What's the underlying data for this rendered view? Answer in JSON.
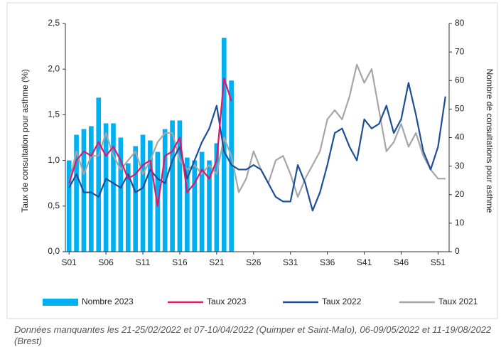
{
  "chart_data": {
    "type": "combo",
    "y_label": "Taux de consultation pour asthme (%)",
    "y2_label": "Nombre de consultations pour asthme",
    "categories": [
      "S01",
      null,
      null,
      null,
      null,
      "S06",
      null,
      null,
      null,
      null,
      "S11",
      null,
      null,
      null,
      null,
      "S16",
      null,
      null,
      null,
      null,
      "S21",
      null,
      null,
      null,
      null,
      "S26",
      null,
      null,
      null,
      null,
      "S31",
      null,
      null,
      null,
      null,
      "S36",
      null,
      null,
      null,
      null,
      "S41",
      null,
      null,
      null,
      null,
      "S46",
      null,
      null,
      null,
      null,
      "S51",
      null
    ],
    "ylim": [
      0,
      2.5
    ],
    "yticks": [
      {
        "value": 0,
        "label": "0,0"
      },
      {
        "value": 0.5,
        "label": "0,5"
      },
      {
        "value": 1,
        "label": "1,0"
      },
      {
        "value": 1.5,
        "label": "1,5"
      },
      {
        "value": 2,
        "label": "2,0"
      },
      {
        "value": 2.5,
        "label": "2,5"
      }
    ],
    "y2lim": [
      0,
      80
    ],
    "y2ticks": [
      0,
      10,
      20,
      30,
      40,
      50,
      60,
      70,
      80
    ],
    "series": [
      {
        "name": "Nombre 2023",
        "type": "bar",
        "axis": "y2",
        "color": "#00b0f0",
        "values": [
          32,
          41,
          43,
          44,
          54,
          45,
          45,
          40,
          31,
          37,
          41,
          39,
          35,
          43,
          46,
          46,
          33,
          32,
          35,
          32,
          38,
          75,
          60,
          null,
          null,
          null,
          null,
          null,
          null,
          null,
          null,
          null,
          null,
          null,
          null,
          null,
          null,
          null,
          null,
          null,
          null,
          null,
          null,
          null,
          null,
          null,
          null,
          null,
          null,
          null,
          null,
          null
        ]
      },
      {
        "name": "Taux 2023",
        "type": "line",
        "color": "#e0186c",
        "values": [
          0.75,
          1.0,
          1.1,
          1.05,
          1.2,
          1.05,
          1.15,
          1.0,
          0.8,
          0.85,
          0.95,
          1.0,
          0.5,
          1.05,
          1.1,
          1.25,
          0.65,
          0.75,
          0.9,
          0.8,
          1.0,
          1.9,
          1.65,
          null,
          null,
          null,
          null,
          null,
          null,
          null,
          null,
          null,
          null,
          null,
          null,
          null,
          null,
          null,
          null,
          null,
          null,
          null,
          null,
          null,
          null,
          null,
          null,
          null,
          null,
          null,
          null,
          null
        ]
      },
      {
        "name": "Taux 2022",
        "type": "line",
        "color": "#1f4e99",
        "values": [
          0.7,
          0.85,
          0.65,
          0.65,
          0.6,
          0.8,
          0.75,
          0.7,
          0.85,
          0.65,
          0.7,
          0.9,
          0.8,
          0.75,
          1.0,
          1.15,
          0.8,
          1.0,
          1.2,
          1.35,
          1.6,
          1.1,
          0.95,
          0.9,
          0.9,
          0.95,
          0.9,
          0.75,
          0.6,
          0.55,
          0.55,
          0.95,
          0.75,
          0.45,
          0.65,
          0.95,
          1.3,
          1.35,
          1.15,
          1.0,
          1.45,
          1.35,
          1.4,
          1.6,
          1.3,
          1.45,
          1.85,
          1.5,
          1.1,
          0.9,
          1.15,
          1.7
        ]
      },
      {
        "name": "Taux 2021",
        "type": "line",
        "color": "#a6a6a6",
        "values": [
          0.75,
          1.1,
          0.85,
          1.05,
          1.05,
          1.3,
          1.05,
          0.9,
          1.0,
          1.1,
          0.85,
          1.0,
          1.2,
          1.3,
          1.3,
          1.0,
          0.9,
          0.95,
          0.85,
          0.95,
          0.85,
          1.25,
          1.05,
          0.65,
          0.8,
          1.1,
          0.9,
          0.75,
          1.0,
          1.05,
          0.85,
          0.6,
          0.8,
          0.95,
          1.1,
          1.45,
          1.55,
          1.45,
          1.7,
          2.05,
          1.85,
          2.0,
          1.55,
          1.1,
          1.2,
          1.4,
          1.15,
          1.3,
          1.05,
          0.9,
          0.8,
          0.8
        ]
      }
    ],
    "note": "Données manquantes les 21-25/02/2022 et 07-10/04/2022 (Quimper et Saint-Malo), 06-09/05/2022 et 11-19/08/2022 (Brest)"
  }
}
